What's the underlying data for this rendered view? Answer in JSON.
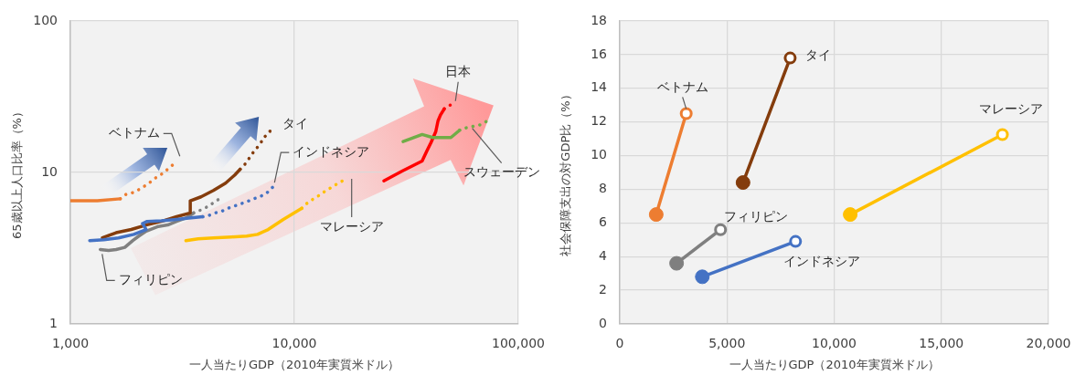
{
  "chart_data": [
    {
      "type": "line",
      "xlabel": "一人当たりGDP（2010年実質米ドル）",
      "ylabel": "65歳以上人口比率（%）",
      "log": "xy",
      "xlim": [
        1000,
        100000
      ],
      "ylim": [
        1,
        100
      ],
      "xticks": [
        {
          "value": 1000,
          "label": "1,000"
        },
        {
          "value": 10000,
          "label": "10,000"
        },
        {
          "value": 100000,
          "label": "100,000"
        }
      ],
      "yticks": [
        1,
        10,
        100
      ],
      "grid": true,
      "marker": "none",
      "series": [
        {
          "color": "#ed7d31",
          "line_style": "solid",
          "x": [
            1000,
            1320,
            1670
          ],
          "values": [
            6.5,
            6.5,
            6.7
          ]
        },
        {
          "name": "ベトナム",
          "color": "#ed7d31",
          "line_style": "dotted",
          "x": [
            1670,
            1780,
            1930,
            2080,
            2220,
            2400,
            2570,
            2760,
            2940
          ],
          "values": [
            6.7,
            7.2,
            7.4,
            7.9,
            8.4,
            9.2,
            9.8,
            10.7,
            11.6
          ]
        },
        {
          "name": "フィリピン",
          "color": "#808080",
          "line_style": "solid",
          "x": [
            1360,
            1480,
            1600,
            1750,
            1900,
            2020,
            2180,
            2470,
            2720,
            2980,
            3280,
            3550
          ],
          "values": [
            3.1,
            3.05,
            3.1,
            3.2,
            3.55,
            3.8,
            4.1,
            4.4,
            4.5,
            4.75,
            5.0,
            5.4
          ]
        },
        {
          "color": "#808080",
          "line_style": "dotted",
          "x": [
            3550,
            3770,
            4060,
            4350,
            4630
          ],
          "values": [
            5.4,
            5.6,
            5.9,
            6.3,
            6.7
          ]
        },
        {
          "color": "#843c0c",
          "line_style": "solid",
          "x": [
            1390,
            1600,
            1870,
            2180,
            2550,
            2980,
            3430,
            3430,
            3830,
            4350,
            4930,
            5410,
            5730
          ],
          "values": [
            3.7,
            4.0,
            4.2,
            4.5,
            4.75,
            5.1,
            5.4,
            6.5,
            6.9,
            7.6,
            8.5,
            9.6,
            10.5
          ]
        },
        {
          "name": "タイ",
          "color": "#843c0c",
          "line_style": "dotted",
          "x": [
            5730,
            6040,
            6330,
            6630,
            7060,
            7290,
            7640,
            7880
          ],
          "values": [
            10.5,
            11.4,
            12.6,
            13.9,
            15.5,
            17.0,
            18.0,
            19.2
          ]
        },
        {
          "color": "#4472c4",
          "line_style": "solid",
          "x": [
            1220,
            1410,
            1640,
            1920,
            2180,
            2100,
            2200,
            2550,
            2980,
            3380,
            3900
          ],
          "values": [
            3.55,
            3.6,
            3.7,
            3.9,
            4.2,
            4.6,
            4.75,
            4.8,
            4.9,
            5.0,
            5.1
          ]
        },
        {
          "name": "インドネシア",
          "color": "#4472c4",
          "line_style": "dotted",
          "x": [
            3900,
            4150,
            4420,
            4750,
            5050,
            5410,
            5760,
            6130,
            6570,
            7000,
            7520,
            8080
          ],
          "values": [
            5.1,
            5.2,
            5.4,
            5.55,
            5.8,
            6.0,
            6.2,
            6.4,
            6.7,
            6.9,
            7.3,
            8.1
          ]
        },
        {
          "color": "#ffc000",
          "line_style": "solid",
          "x": [
            3280,
            3720,
            4350,
            5240,
            6130,
            6850,
            7640,
            8930,
            10800
          ],
          "values": [
            3.55,
            3.65,
            3.7,
            3.75,
            3.8,
            3.9,
            4.2,
            4.9,
            5.8
          ]
        },
        {
          "name": "マレーシア",
          "color": "#ffc000",
          "line_style": "dotted",
          "x": [
            10800,
            11300,
            12000,
            12800,
            13500,
            14300,
            15100,
            16200,
            17200
          ],
          "values": [
            5.8,
            6.2,
            6.6,
            7.0,
            7.4,
            7.8,
            8.2,
            8.7,
            9.2
          ]
        },
        {
          "color": "#ff0000",
          "line_style": "solid",
          "x": [
            25100,
            30300,
            37200,
            39000,
            40800,
            42800,
            43800,
            44900,
            46700
          ],
          "values": [
            8.8,
            10.2,
            11.9,
            13.8,
            15.8,
            18.6,
            21.9,
            23.9,
            26.3
          ]
        },
        {
          "name": "日本",
          "color": "#ff0000",
          "line_style": "dotted",
          "x": [
            46700,
            49300,
            52400
          ],
          "values": [
            26.3,
            27.7,
            28.8
          ]
        },
        {
          "color": "#70ad47",
          "line_style": "solid",
          "x": [
            30600,
            37200,
            41500,
            50000,
            54700
          ],
          "values": [
            16.0,
            17.8,
            17.0,
            17.0,
            19.0
          ]
        },
        {
          "name": "スウェーデン",
          "color": "#70ad47",
          "line_style": "dotted",
          "x": [
            54700,
            58500,
            62300,
            67400,
            72900
          ],
          "values": [
            19.0,
            19.7,
            20.1,
            20.6,
            21.9
          ]
        }
      ]
    },
    {
      "type": "line",
      "xlabel": "一人当たりGDP（2010年実質米ドル）",
      "ylabel": "社会保障支出の対GDP比（%）",
      "xlim": [
        0,
        20000
      ],
      "ylim": [
        0,
        18
      ],
      "xticks": [
        0,
        {
          "value": 5000,
          "label": "5,000"
        },
        {
          "value": 10000,
          "label": "10,000"
        },
        {
          "value": 15000,
          "label": "15,000"
        },
        {
          "value": 20000,
          "label": "20,000"
        }
      ],
      "yticks": [
        0,
        2,
        4,
        6,
        8,
        10,
        12,
        14,
        16,
        18
      ],
      "grid": true,
      "marker": "circle",
      "line_style": "solid",
      "series": [
        {
          "name": "ベトナム",
          "color": "#ed7d31",
          "x": [
            1700,
            3100
          ],
          "values": [
            6.5,
            12.5
          ]
        },
        {
          "name": "タイ",
          "color": "#843c0c",
          "x": [
            5750,
            7950
          ],
          "values": [
            8.4,
            15.8
          ]
        },
        {
          "name": "フィリピン",
          "color": "#7f7f7f",
          "x": [
            2650,
            4700
          ],
          "values": [
            3.6,
            5.6
          ]
        },
        {
          "name": "インドネシア",
          "color": "#4472c4",
          "x": [
            3850,
            8200
          ],
          "values": [
            2.8,
            4.9
          ]
        },
        {
          "name": "マレーシア",
          "color": "#ffc000",
          "x": [
            10750,
            17850
          ],
          "values": [
            6.5,
            11.25
          ]
        }
      ]
    }
  ]
}
